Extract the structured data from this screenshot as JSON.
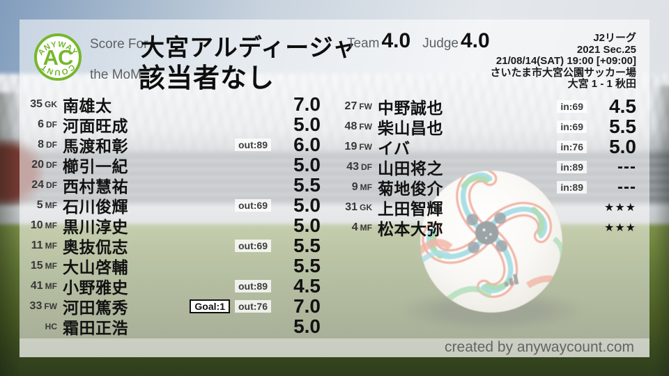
{
  "branding": {
    "logo_arc_top": "ANYWAY",
    "logo_center": "AC",
    "logo_arc_bottom": "COUNT",
    "accent_green": "#76b72e",
    "created_by": "created by anywaycount.com"
  },
  "header": {
    "score_for_label": "Score For",
    "team_name": "大宮アルディージャ",
    "mom_label": "the MoM",
    "mom_value": "該当者なし",
    "team_label": "Team",
    "team_score": "4.0",
    "judge_label": "Judge",
    "judge_score": "4.0"
  },
  "match_info": {
    "league": "J2リーグ",
    "season": "2021 Sec.25",
    "kickoff": "21/08/14(SAT) 19:00 [+09:00]",
    "venue": "さいたま市大宮公園サッカー場",
    "result": "大宮 1 - 1 秋田"
  },
  "players": {
    "starters": [
      {
        "num": "35",
        "pos": "GK",
        "name": "南雄太",
        "badges": [],
        "score": "7.0"
      },
      {
        "num": "6",
        "pos": "DF",
        "name": "河面旺成",
        "badges": [],
        "score": "5.0"
      },
      {
        "num": "8",
        "pos": "DF",
        "name": "馬渡和彰",
        "badges": [
          {
            "type": "sub",
            "label": "out:89"
          }
        ],
        "score": "6.0"
      },
      {
        "num": "20",
        "pos": "DF",
        "name": "櫛引一紀",
        "badges": [],
        "score": "5.0"
      },
      {
        "num": "24",
        "pos": "DF",
        "name": "西村慧祐",
        "badges": [],
        "score": "5.5"
      },
      {
        "num": "5",
        "pos": "MF",
        "name": "石川俊輝",
        "badges": [
          {
            "type": "sub",
            "label": "out:69"
          }
        ],
        "score": "5.0"
      },
      {
        "num": "10",
        "pos": "MF",
        "name": "黒川淳史",
        "badges": [],
        "score": "5.0"
      },
      {
        "num": "11",
        "pos": "MF",
        "name": "奥抜侃志",
        "badges": [
          {
            "type": "sub",
            "label": "out:69"
          }
        ],
        "score": "5.5"
      },
      {
        "num": "15",
        "pos": "MF",
        "name": "大山啓輔",
        "badges": [],
        "score": "5.5"
      },
      {
        "num": "41",
        "pos": "MF",
        "name": "小野雅史",
        "badges": [
          {
            "type": "sub",
            "label": "out:89"
          }
        ],
        "score": "4.5"
      },
      {
        "num": "33",
        "pos": "FW",
        "name": "河田篤秀",
        "badges": [
          {
            "type": "goal",
            "label": "Goal:1"
          },
          {
            "type": "sub",
            "label": "out:76"
          }
        ],
        "score": "7.0"
      },
      {
        "num": "",
        "pos": "HC",
        "name": "霜田正浩",
        "badges": [],
        "score": "5.0"
      }
    ],
    "substitutes": [
      {
        "num": "27",
        "pos": "FW",
        "name": "中野誠也",
        "badges": [
          {
            "type": "sub",
            "label": "in:69"
          }
        ],
        "score": "4.5"
      },
      {
        "num": "48",
        "pos": "FW",
        "name": "柴山昌也",
        "badges": [
          {
            "type": "sub",
            "label": "in:69"
          }
        ],
        "score": "5.5"
      },
      {
        "num": "19",
        "pos": "FW",
        "name": "イバ",
        "badges": [
          {
            "type": "sub",
            "label": "in:76"
          }
        ],
        "score": "5.0"
      },
      {
        "num": "43",
        "pos": "DF",
        "name": "山田将之",
        "badges": [
          {
            "type": "sub",
            "label": "in:89"
          }
        ],
        "score": "---"
      },
      {
        "num": "9",
        "pos": "MF",
        "name": "菊地俊介",
        "badges": [
          {
            "type": "sub",
            "label": "in:89"
          }
        ],
        "score": "---"
      },
      {
        "num": "31",
        "pos": "GK",
        "name": "上田智輝",
        "badges": [],
        "score": "★★★"
      },
      {
        "num": "4",
        "pos": "MF",
        "name": "松本大弥",
        "badges": [],
        "score": "★★★"
      }
    ]
  }
}
